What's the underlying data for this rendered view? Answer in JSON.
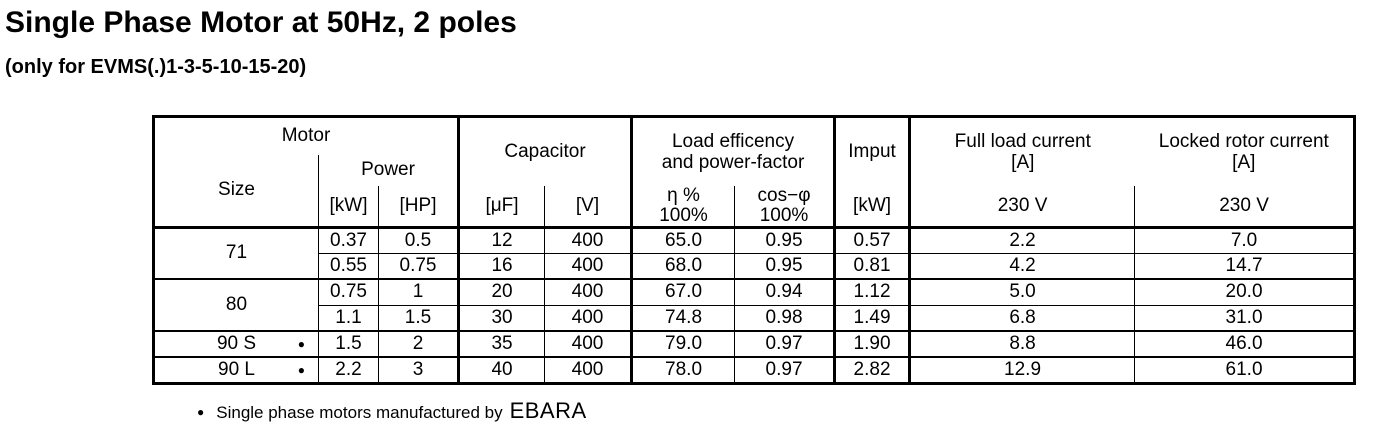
{
  "page": {
    "title": "Single Phase Motor at 50Hz, 2 poles",
    "subtitle": "(only for EVMS(.)1-3-5-10-15-20)"
  },
  "table": {
    "header": {
      "motor": "Motor",
      "size": "Size",
      "power": "Power",
      "power_kw_unit": "[kW]",
      "power_hp_unit": "[HP]",
      "capacitor": "Capacitor",
      "capacitor_uf_unit": "[μF]",
      "capacitor_v_unit": "[V]",
      "load_efficiency_line1": "Load efficency",
      "load_efficiency_line2": "and power-factor",
      "eta_line1": "η %",
      "eta_line2": "100%",
      "cos_line1": "cos−φ",
      "cos_line2": "100%",
      "input": "Imput",
      "input_unit": "[kW]",
      "full_load_line1": "Full load current",
      "full_load_line2": "[A]",
      "full_load_voltage": "230 V",
      "locked_rotor_line1": "Locked rotor current",
      "locked_rotor_line2": "[A]",
      "locked_rotor_voltage": "230 V"
    },
    "groups": [
      {
        "size": "71",
        "rows": [
          {
            "kw": "0.37",
            "hp": "0.5",
            "uf": "12",
            "v": "400",
            "eta": "65.0",
            "cos": "0.95",
            "input_kw": "0.57",
            "full_load_a": "2.2",
            "locked_rotor_a": "7.0"
          },
          {
            "kw": "0.55",
            "hp": "0.75",
            "uf": "16",
            "v": "400",
            "eta": "68.0",
            "cos": "0.95",
            "input_kw": "0.81",
            "full_load_a": "4.2",
            "locked_rotor_a": "14.7"
          }
        ]
      },
      {
        "size": "80",
        "rows": [
          {
            "kw": "0.75",
            "hp": "1",
            "uf": "20",
            "v": "400",
            "eta": "67.0",
            "cos": "0.94",
            "input_kw": "1.12",
            "full_load_a": "5.0",
            "locked_rotor_a": "20.0"
          },
          {
            "kw": "1.1",
            "hp": "1.5",
            "uf": "30",
            "v": "400",
            "eta": "74.8",
            "cos": "0.98",
            "input_kw": "1.49",
            "full_load_a": "6.8",
            "locked_rotor_a": "31.0"
          }
        ]
      },
      {
        "size": "90 S",
        "bullet": "●",
        "rows": [
          {
            "kw": "1.5",
            "hp": "2",
            "uf": "35",
            "v": "400",
            "eta": "79.0",
            "cos": "0.97",
            "input_kw": "1.90",
            "full_load_a": "8.8",
            "locked_rotor_a": "46.0"
          }
        ]
      },
      {
        "size": "90 L",
        "bullet": "●",
        "rows": [
          {
            "kw": "2.2",
            "hp": "3",
            "uf": "40",
            "v": "400",
            "eta": "78.0",
            "cos": "0.97",
            "input_kw": "2.82",
            "full_load_a": "12.9",
            "locked_rotor_a": "61.0"
          }
        ]
      }
    ]
  },
  "footnote": {
    "bullet": "●",
    "text": "Single phase motors manufactured by",
    "brand": "EBARA"
  }
}
